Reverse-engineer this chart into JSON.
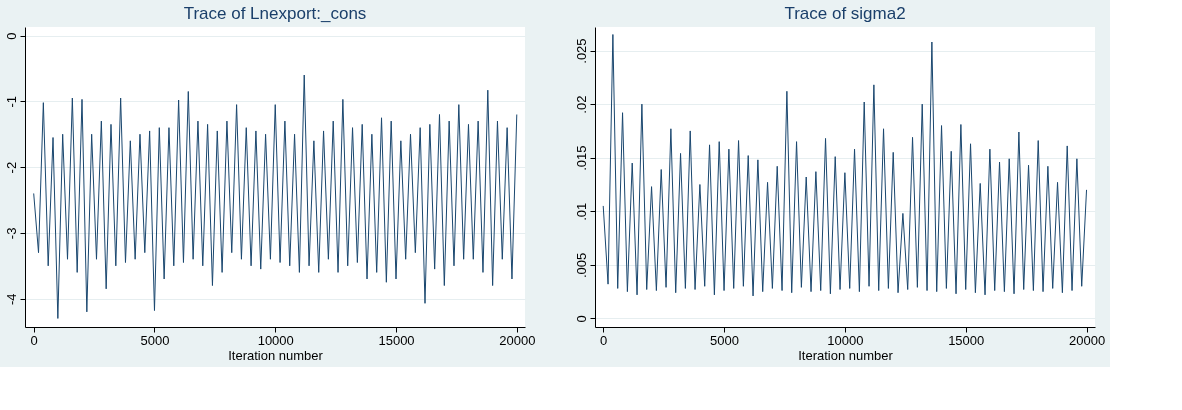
{
  "chart_data": [
    {
      "type": "line",
      "title": "Trace of Lnexport:_cons",
      "xlabel": "Iteration number",
      "x": [
        0,
        200,
        400,
        600,
        800,
        1000,
        1200,
        1400,
        1600,
        1800,
        2000,
        2200,
        2400,
        2600,
        2800,
        3000,
        3200,
        3400,
        3600,
        3800,
        4000,
        4200,
        4400,
        4600,
        4800,
        5000,
        5200,
        5400,
        5600,
        5800,
        6000,
        6200,
        6400,
        6600,
        6800,
        7000,
        7200,
        7400,
        7600,
        7800,
        8000,
        8200,
        8400,
        8600,
        8800,
        9000,
        9200,
        9400,
        9600,
        9800,
        10000,
        10200,
        10400,
        10600,
        10800,
        11000,
        11200,
        11400,
        11600,
        11800,
        12000,
        12200,
        12400,
        12600,
        12800,
        13000,
        13200,
        13400,
        13600,
        13800,
        14000,
        14200,
        14400,
        14600,
        14800,
        15000,
        15200,
        15400,
        15600,
        15800,
        16000,
        16200,
        16400,
        16600,
        16800,
        17000,
        17200,
        17400,
        17600,
        17800,
        18000,
        18200,
        18400,
        18600,
        18800,
        19000,
        19200,
        19400,
        19600,
        19800,
        20000
      ],
      "series": [
        {
          "color": "#1a476f",
          "values": [
            -2.4,
            -3.3,
            -1.02,
            -3.5,
            -1.55,
            -4.3,
            -1.5,
            -3.4,
            -0.95,
            -3.6,
            -0.97,
            -4.2,
            -1.5,
            -3.4,
            -1.3,
            -3.85,
            -1.35,
            -3.5,
            -0.95,
            -3.45,
            -1.6,
            -3.4,
            -1.5,
            -3.3,
            -1.45,
            -4.18,
            -1.4,
            -3.7,
            -1.4,
            -3.5,
            -0.98,
            -3.45,
            -0.85,
            -3.4,
            -1.3,
            -3.5,
            -1.35,
            -3.8,
            -1.45,
            -3.6,
            -1.3,
            -3.3,
            -1.05,
            -3.4,
            -1.4,
            -3.5,
            -1.45,
            -3.55,
            -1.5,
            -3.4,
            -1.05,
            -3.45,
            -1.3,
            -3.5,
            -1.5,
            -3.6,
            -0.6,
            -3.5,
            -1.6,
            -3.6,
            -1.45,
            -3.4,
            -1.3,
            -3.6,
            -0.97,
            -3.5,
            -1.4,
            -3.45,
            -1.35,
            -3.7,
            -1.5,
            -3.6,
            -1.25,
            -3.75,
            -1.3,
            -3.7,
            -1.6,
            -3.4,
            -1.5,
            -3.3,
            -1.4,
            -4.07,
            -1.35,
            -3.55,
            -1.2,
            -3.8,
            -1.3,
            -3.5,
            -1.05,
            -3.4,
            -1.35,
            -3.4,
            -1.3,
            -3.6,
            -0.83,
            -3.8,
            -1.3,
            -3.4,
            -1.4,
            -3.7,
            -1.2
          ]
        }
      ],
      "xlim": [
        -360,
        20340
      ],
      "xticks": [
        0,
        5000,
        10000,
        15000,
        20000
      ],
      "ylim": [
        -4.43,
        0.13
      ],
      "yticks": [
        -4,
        -3,
        -2,
        -1,
        0
      ],
      "grid": "y",
      "line_style": "solid"
    },
    {
      "type": "line",
      "title": "Trace of sigma2",
      "xlabel": "Iteration number",
      "x": [
        0,
        200,
        400,
        600,
        800,
        1000,
        1200,
        1400,
        1600,
        1800,
        2000,
        2200,
        2400,
        2600,
        2800,
        3000,
        3200,
        3400,
        3600,
        3800,
        4000,
        4200,
        4400,
        4600,
        4800,
        5000,
        5200,
        5400,
        5600,
        5800,
        6000,
        6200,
        6400,
        6600,
        6800,
        7000,
        7200,
        7400,
        7600,
        7800,
        8000,
        8200,
        8400,
        8600,
        8800,
        9000,
        9200,
        9400,
        9600,
        9800,
        10000,
        10200,
        10400,
        10600,
        10800,
        11000,
        11200,
        11400,
        11600,
        11800,
        12000,
        12200,
        12400,
        12600,
        12800,
        13000,
        13200,
        13400,
        13600,
        13800,
        14000,
        14200,
        14400,
        14600,
        14800,
        15000,
        15200,
        15400,
        15600,
        15800,
        16000,
        16200,
        16400,
        16600,
        16800,
        17000,
        17200,
        17400,
        17600,
        17800,
        18000,
        18200,
        18400,
        18600,
        18800,
        19000,
        19200,
        19400,
        19600,
        19800,
        20000
      ],
      "series": [
        {
          "color": "#1a476f",
          "values": [
            0.0105,
            0.0032,
            0.0265,
            0.0028,
            0.0192,
            0.0025,
            0.0145,
            0.0022,
            0.02,
            0.0027,
            0.0123,
            0.0026,
            0.0139,
            0.0029,
            0.0177,
            0.0024,
            0.0154,
            0.0028,
            0.0175,
            0.0027,
            0.0125,
            0.003,
            0.0162,
            0.0022,
            0.0165,
            0.0026,
            0.0158,
            0.0028,
            0.0166,
            0.003,
            0.0152,
            0.0021,
            0.0148,
            0.0025,
            0.0127,
            0.0028,
            0.0142,
            0.0026,
            0.0212,
            0.0024,
            0.0165,
            0.0029,
            0.0132,
            0.0025,
            0.0137,
            0.0026,
            0.0168,
            0.0023,
            0.0151,
            0.0027,
            0.0136,
            0.0028,
            0.0158,
            0.0025,
            0.0202,
            0.003,
            0.0218,
            0.0026,
            0.0177,
            0.0028,
            0.0155,
            0.0024,
            0.0098,
            0.0027,
            0.0169,
            0.0029,
            0.02,
            0.0026,
            0.0258,
            0.0025,
            0.018,
            0.0028,
            0.0156,
            0.0023,
            0.0181,
            0.0027,
            0.0163,
            0.0024,
            0.0126,
            0.0022,
            0.0158,
            0.0026,
            0.0146,
            0.0025,
            0.0149,
            0.0023,
            0.0174,
            0.0027,
            0.0143,
            0.0026,
            0.0166,
            0.0025,
            0.0142,
            0.0028,
            0.0127,
            0.0024,
            0.0161,
            0.0026,
            0.0149,
            0.003,
            0.012
          ]
        }
      ],
      "xlim": [
        -340,
        20350
      ],
      "xticks": [
        0,
        5000,
        10000,
        15000,
        20000
      ],
      "ylim": [
        -0.0008,
        0.0272
      ],
      "yticks": [
        0,
        {
          "value": 0.005,
          "label": ".005"
        },
        {
          "value": 0.01,
          "label": ".01"
        },
        {
          "value": 0.015,
          "label": ".015"
        },
        {
          "value": 0.02,
          "label": ".02"
        },
        {
          "value": 0.025,
          "label": ".025"
        }
      ],
      "grid": "y",
      "line_style": "solid"
    }
  ]
}
